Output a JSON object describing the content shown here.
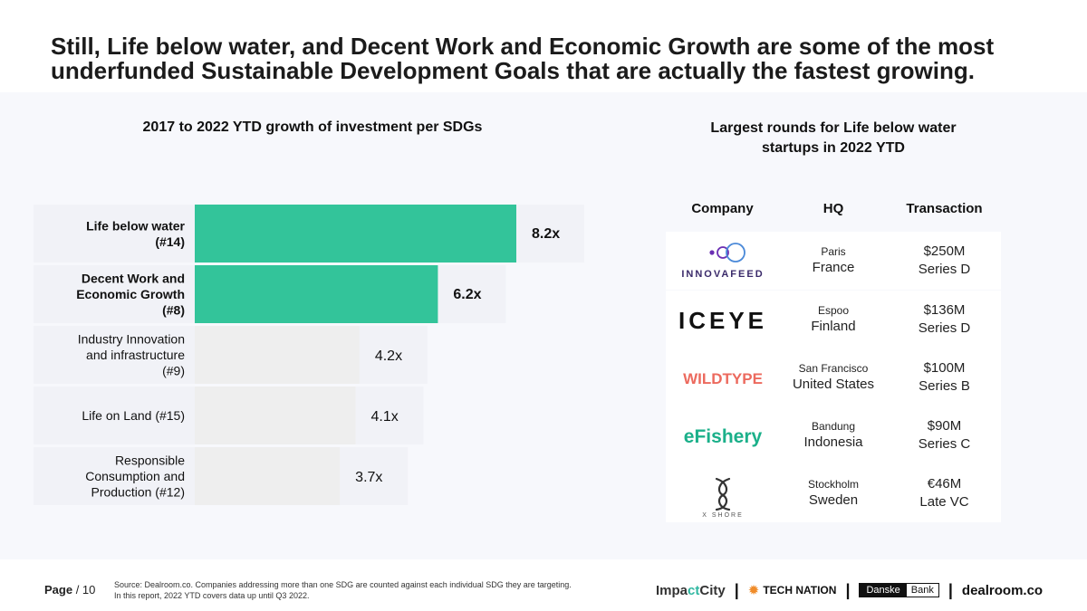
{
  "headline": {
    "line1": "Still, Life below water, and Decent Work and Economic Growth are some of the most",
    "line2": "underfunded Sustainable Development Goals that are actually the fastest growing."
  },
  "chart_data": {
    "type": "bar",
    "orientation": "horizontal",
    "title": "2017 to 2022 YTD growth of investment per SDGs",
    "xlabel": "",
    "ylabel": "",
    "xlim": [
      0,
      8.8
    ],
    "grid": false,
    "categories": [
      [
        "Life below water",
        "(#14)"
      ],
      [
        "Decent Work and",
        "Economic Growth",
        "(#8)"
      ],
      [
        "Industry Innovation",
        "and infrastructure",
        "(#9)"
      ],
      [
        "Life on Land (#15)"
      ],
      [
        "Responsible",
        "Consumption and",
        "Production (#12)"
      ]
    ],
    "values": [
      8.2,
      6.2,
      4.2,
      4.1,
      3.7
    ],
    "value_labels": [
      "8.2x",
      "6.2x",
      "4.2x",
      "4.1x",
      "3.7x"
    ],
    "highlighted": [
      true,
      true,
      false,
      false,
      false
    ],
    "colors": {
      "highlight": "#33c49a",
      "normal": "#eeeeee"
    }
  },
  "table": {
    "title_line1": "Largest rounds for Life below water",
    "title_line2": "startups in 2022 YTD",
    "headers": {
      "company": "Company",
      "hq": "HQ",
      "transaction": "Transaction"
    },
    "rows": [
      {
        "company": "INNOVAFEED",
        "city": "Paris",
        "country": "France",
        "amount": "$250M",
        "round": "Series D"
      },
      {
        "company": "ICEYE",
        "city": "Espoo",
        "country": "Finland",
        "amount": "$136M",
        "round": "Series D"
      },
      {
        "company": "WILDTYPE",
        "city": "San Francisco",
        "country": "United States",
        "amount": "$100M",
        "round": "Series B"
      },
      {
        "company": "eFishery",
        "city": "Bandung",
        "country": "Indonesia",
        "amount": "$90M",
        "round": "Series C"
      },
      {
        "company": "X SHORE",
        "city": "Stockholm",
        "country": "Sweden",
        "amount": "€46M",
        "round": "Late VC"
      }
    ]
  },
  "footer": {
    "page_label": "Page",
    "page_number": "/ 10",
    "source_line1": "Source: Dealroom.co. Companies addressing more than one SDG are counted against each individual SDG they are targeting.",
    "source_line2": "In this report, 2022 YTD covers data up until Q3 2022.",
    "partners": {
      "impact_a": "Impa",
      "impact_b": "ct",
      "impact_c": "City",
      "tech": "TECH NATION",
      "danske_a": "Danske",
      "danske_b": "Bank",
      "dealroom": "dealroom.co",
      "separator": "|"
    }
  }
}
